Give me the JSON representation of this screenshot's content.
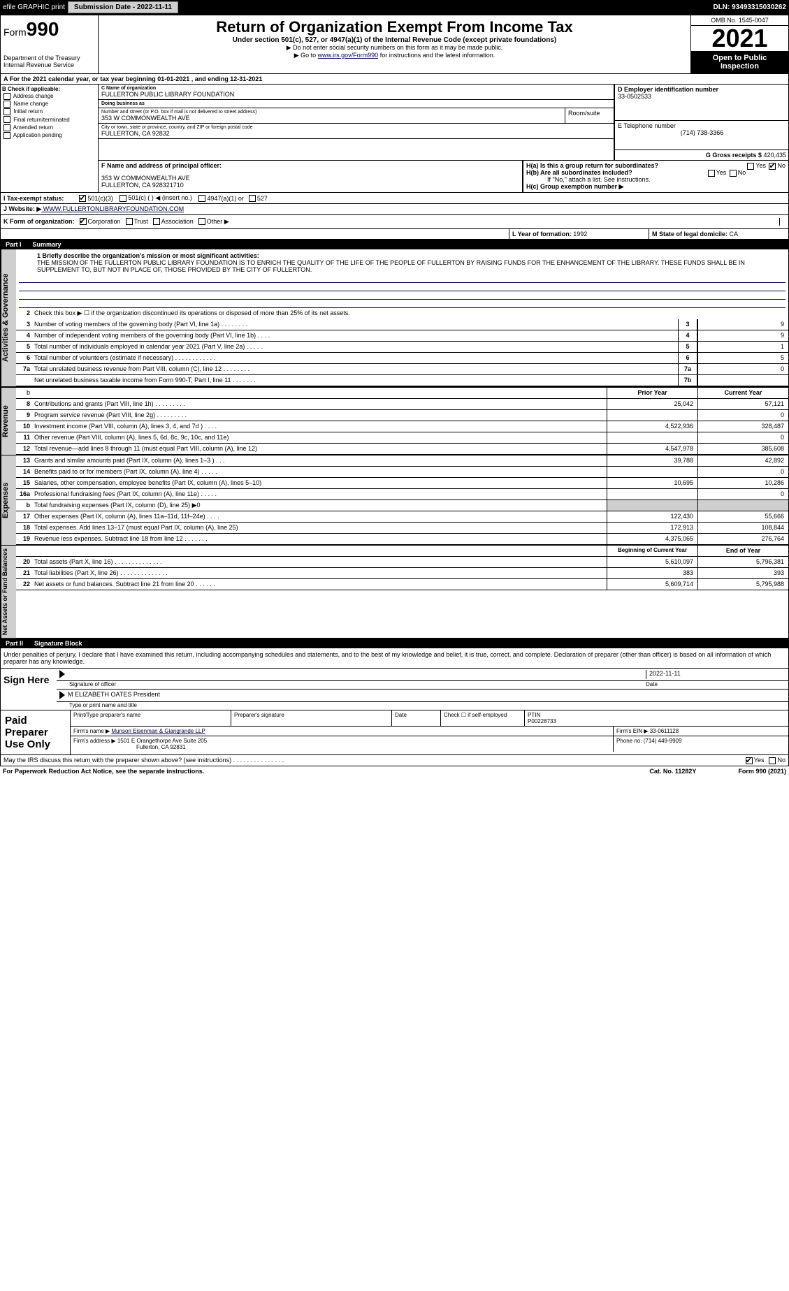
{
  "topbar": {
    "efile": "efile GRAPHIC print",
    "subdate_lbl": "Submission Date - 2022-11-11",
    "dln": "DLN: 93493315030262"
  },
  "header": {
    "form_prefix": "Form",
    "form_num": "990",
    "dept": "Department of the Treasury",
    "irs": "Internal Revenue Service",
    "title": "Return of Organization Exempt From Income Tax",
    "sub": "Under section 501(c), 527, or 4947(a)(1) of the Internal Revenue Code (except private foundations)",
    "note1": "▶ Do not enter social security numbers on this form as it may be made public.",
    "note2_pre": "▶ Go to ",
    "note2_link": "www.irs.gov/Form990",
    "note2_post": " for instructions and the latest information.",
    "omb": "OMB No. 1545-0047",
    "year": "2021",
    "otp": "Open to Public Inspection"
  },
  "section_a": "A For the 2021 calendar year, or tax year beginning 01-01-2021     , and ending 12-31-2021",
  "section_b": {
    "hdr": "B Check if applicable:",
    "items": [
      "Address change",
      "Name change",
      "Initial return",
      "Final return/terminated",
      "Amended return",
      "Application pending"
    ]
  },
  "section_c": {
    "lbl_name": "C Name of organization",
    "org_name": "FULLERTON PUBLIC LIBRARY FOUNDATION",
    "dba_lbl": "Doing business as",
    "dba": "",
    "addr_lbl": "Number and street (or P.O. box if mail is not delivered to street address)",
    "room_lbl": "Room/suite",
    "addr": "353 W COMMONWEALTH AVE",
    "city_lbl": "City or town, state or province, country, and ZIP or foreign postal code",
    "city": "FULLERTON, CA  92832"
  },
  "section_d": {
    "lbl": "D Employer identification number",
    "ein": "33-0502533"
  },
  "section_e": {
    "lbl": "E Telephone number",
    "phone": "(714) 738-3366"
  },
  "section_g": {
    "lbl": "G Gross receipts $",
    "val": "420,435"
  },
  "section_f": {
    "lbl": "F  Name and address of principal officer:",
    "line1": "353 W COMMONWEALTH AVE",
    "line2": "FULLERTON, CA  928321710"
  },
  "section_h": {
    "ha": "H(a)  Is this a group return for subordinates?",
    "hb": "H(b)  Are all subordinates included?",
    "hb_note": "If \"No,\" attach a list. See instructions.",
    "hc": "H(c)  Group exemption number ▶",
    "yes": "Yes",
    "no": "No"
  },
  "row_i": {
    "lbl": "I  Tax-exempt status:",
    "opt1": "501(c)(3)",
    "opt2": "501(c) (   ) ◀ (insert no.)",
    "opt3": "4947(a)(1) or",
    "opt4": "527"
  },
  "row_j": {
    "lbl": "J   Website: ▶",
    "url": " WWW.FULLERTONLIBRARYFOUNDATION.COM"
  },
  "row_k": {
    "lbl": "K Form of organization:",
    "opts": [
      "Corporation",
      "Trust",
      "Association",
      "Other ▶"
    ]
  },
  "row_l": {
    "lbl": "L Year of formation:",
    "val": "1992"
  },
  "row_m": {
    "lbl": "M State of legal domicile:",
    "val": "CA"
  },
  "part1": {
    "num": "Part I",
    "title": "Summary"
  },
  "summary": {
    "l1_lbl": "1  Briefly describe the organization's mission or most significant activities:",
    "l1_text": "THE MISSION OF THE FULLERTON PUBLIC LIBRARY FOUNDATION IS TO ENRICH THE QUALITY OF THE LIFE OF THE PEOPLE OF FULLERTON BY RAISING FUNDS FOR THE ENHANCEMENT OF THE LIBRARY. THESE FUNDS SHALL BE IN SUPPLEMENT TO, BUT NOT IN PLACE OF, THOSE PROVIDED BY THE CITY OF FULLERTON.",
    "l2": "Check this box ▶ ☐  if the organization discontinued its operations or disposed of more than 25% of its net assets.",
    "rows_ag": [
      {
        "n": "3",
        "d": "Number of voting members of the governing body (Part VI, line 1a)   .    .    .    .    .    .    .    .",
        "k": "3",
        "v": "9"
      },
      {
        "n": "4",
        "d": "Number of independent voting members of the governing body (Part VI, line 1b)    .    .    .    .",
        "k": "4",
        "v": "9"
      },
      {
        "n": "5",
        "d": "Total number of individuals employed in calendar year 2021 (Part V, line 2a)   .    .    .    .    .",
        "k": "5",
        "v": "1"
      },
      {
        "n": "6",
        "d": "Total number of volunteers (estimate if necessary)    .    .    .    .    .    .    .    .    .    .    .    .",
        "k": "6",
        "v": "5"
      },
      {
        "n": "7a",
        "d": "Total unrelated business revenue from Part VIII, column (C), line 12   .    .    .    .    .    .    .    .",
        "k": "7a",
        "v": "0"
      },
      {
        "n": "",
        "d": "Net unrelated business taxable income from Form 990-T, Part I, line 11   .    .    .    .    .    .    .",
        "k": "7b",
        "v": ""
      }
    ],
    "col_py": "Prior Year",
    "col_cy": "Current Year",
    "rows_rev": [
      {
        "n": "8",
        "d": "Contributions and grants (Part VIII, line 1h)   .    .    .    .    .    .    .    .    .",
        "py": "25,042",
        "cy": "57,121"
      },
      {
        "n": "9",
        "d": "Program service revenue (Part VIII, line 2g)   .    .    .    .    .    .    .    .    .",
        "py": "",
        "cy": "0"
      },
      {
        "n": "10",
        "d": "Investment income (Part VIII, column (A), lines 3, 4, and 7d )    .    .    .    .",
        "py": "4,522,936",
        "cy": "328,487"
      },
      {
        "n": "11",
        "d": "Other revenue (Part VIII, column (A), lines 5, 6d, 8c, 9c, 10c, and 11e)",
        "py": "",
        "cy": "0"
      },
      {
        "n": "12",
        "d": "Total revenue—add lines 8 through 11 (must equal Part VIII, column (A), line 12)",
        "py": "4,547,978",
        "cy": "385,608"
      }
    ],
    "rows_exp": [
      {
        "n": "13",
        "d": "Grants and similar amounts paid (Part IX, column (A), lines 1–3 )    .    .    .",
        "py": "39,788",
        "cy": "42,892"
      },
      {
        "n": "14",
        "d": "Benefits paid to or for members (Part IX, column (A), line 4)   .    .    .    .    .",
        "py": "",
        "cy": "0"
      },
      {
        "n": "15",
        "d": "Salaries, other compensation, employee benefits (Part IX, column (A), lines 5–10)",
        "py": "10,695",
        "cy": "10,286"
      },
      {
        "n": "16a",
        "d": "Professional fundraising fees (Part IX, column (A), line 11e)   .    .    .    .    .",
        "py": "",
        "cy": "0"
      },
      {
        "n": "b",
        "d": "Total fundraising expenses (Part IX, column (D), line 25) ▶0",
        "py": "__GRAY__",
        "cy": "__GRAY__"
      },
      {
        "n": "17",
        "d": "Other expenses (Part IX, column (A), lines 11a–11d, 11f–24e)    .    .    .    .",
        "py": "122,430",
        "cy": "55,666"
      },
      {
        "n": "18",
        "d": "Total expenses. Add lines 13–17 (must equal Part IX, column (A), line 25)",
        "py": "172,913",
        "cy": "108,844"
      },
      {
        "n": "19",
        "d": "Revenue less expenses. Subtract line 18 from line 12   .    .    .    .    .    .    .",
        "py": "4,375,065",
        "cy": "276,764"
      }
    ],
    "col_bcy": "Beginning of Current Year",
    "col_eoy": "End of Year",
    "rows_na": [
      {
        "n": "20",
        "d": "Total assets (Part X, line 16)   .    .    .    .    .    .    .    .    .    .    .    .    .    .",
        "py": "5,610,097",
        "cy": "5,796,381"
      },
      {
        "n": "21",
        "d": "Total liabilities (Part X, line 26)   .    .    .    .    .    .    .    .    .    .    .    .    .    .",
        "py": "383",
        "cy": "393"
      },
      {
        "n": "22",
        "d": "Net assets or fund balances. Subtract line 21 from line 20   .    .    .    .    .    .",
        "py": "5,609,714",
        "cy": "5,795,988"
      }
    ],
    "tabs": {
      "ag": "Activities & Governance",
      "rev": "Revenue",
      "exp": "Expenses",
      "na": "Net Assets or Fund Balances"
    }
  },
  "part2": {
    "num": "Part II",
    "title": "Signature Block"
  },
  "penalties": "Under penalties of perjury, I declare that I have examined this return, including accompanying schedules and statements, and to the best of my knowledge and belief, it is true, correct, and complete. Declaration of preparer (other than officer) is based on all information of which preparer has any knowledge.",
  "sign": {
    "lbl": "Sign Here",
    "sig_of_officer": "Signature of officer",
    "date": "Date",
    "date_val": "2022-11-11",
    "name": "M ELIZABETH OATES  President",
    "name_lbl": "Type or print name and title"
  },
  "prep": {
    "lbl": "Paid Preparer Use Only",
    "r1": {
      "c1": "Print/Type preparer's name",
      "c2": "Preparer's signature",
      "c3": "Date",
      "c4": "Check ☐ if self-employed",
      "c5_lbl": "PTIN",
      "c5": "P00228733"
    },
    "r2": {
      "lbl": "Firm's name    ▶",
      "val": "Munson Eisenman & Giangrande LLP",
      "ein_lbl": "Firm's EIN ▶",
      "ein": "33-0611128"
    },
    "r3": {
      "lbl": "Firm's address ▶",
      "val1": "1501 E Orangethorpe Ave Suite 205",
      "val2": "Fullerton, CA  92831",
      "ph_lbl": "Phone no.",
      "ph": "(714) 449-9909"
    }
  },
  "discuss": "May the IRS discuss this return with the preparer shown above? (see instructions)    .    .    .    .    .    .    .    .    .    .    .    .    .    .    .",
  "footer": {
    "left": "For Paperwork Reduction Act Notice, see the separate instructions.",
    "mid": "Cat. No. 11282Y",
    "right_pre": "Form ",
    "right_b": "990",
    "right_post": " (2021)"
  },
  "yes": "Yes",
  "no": "No"
}
